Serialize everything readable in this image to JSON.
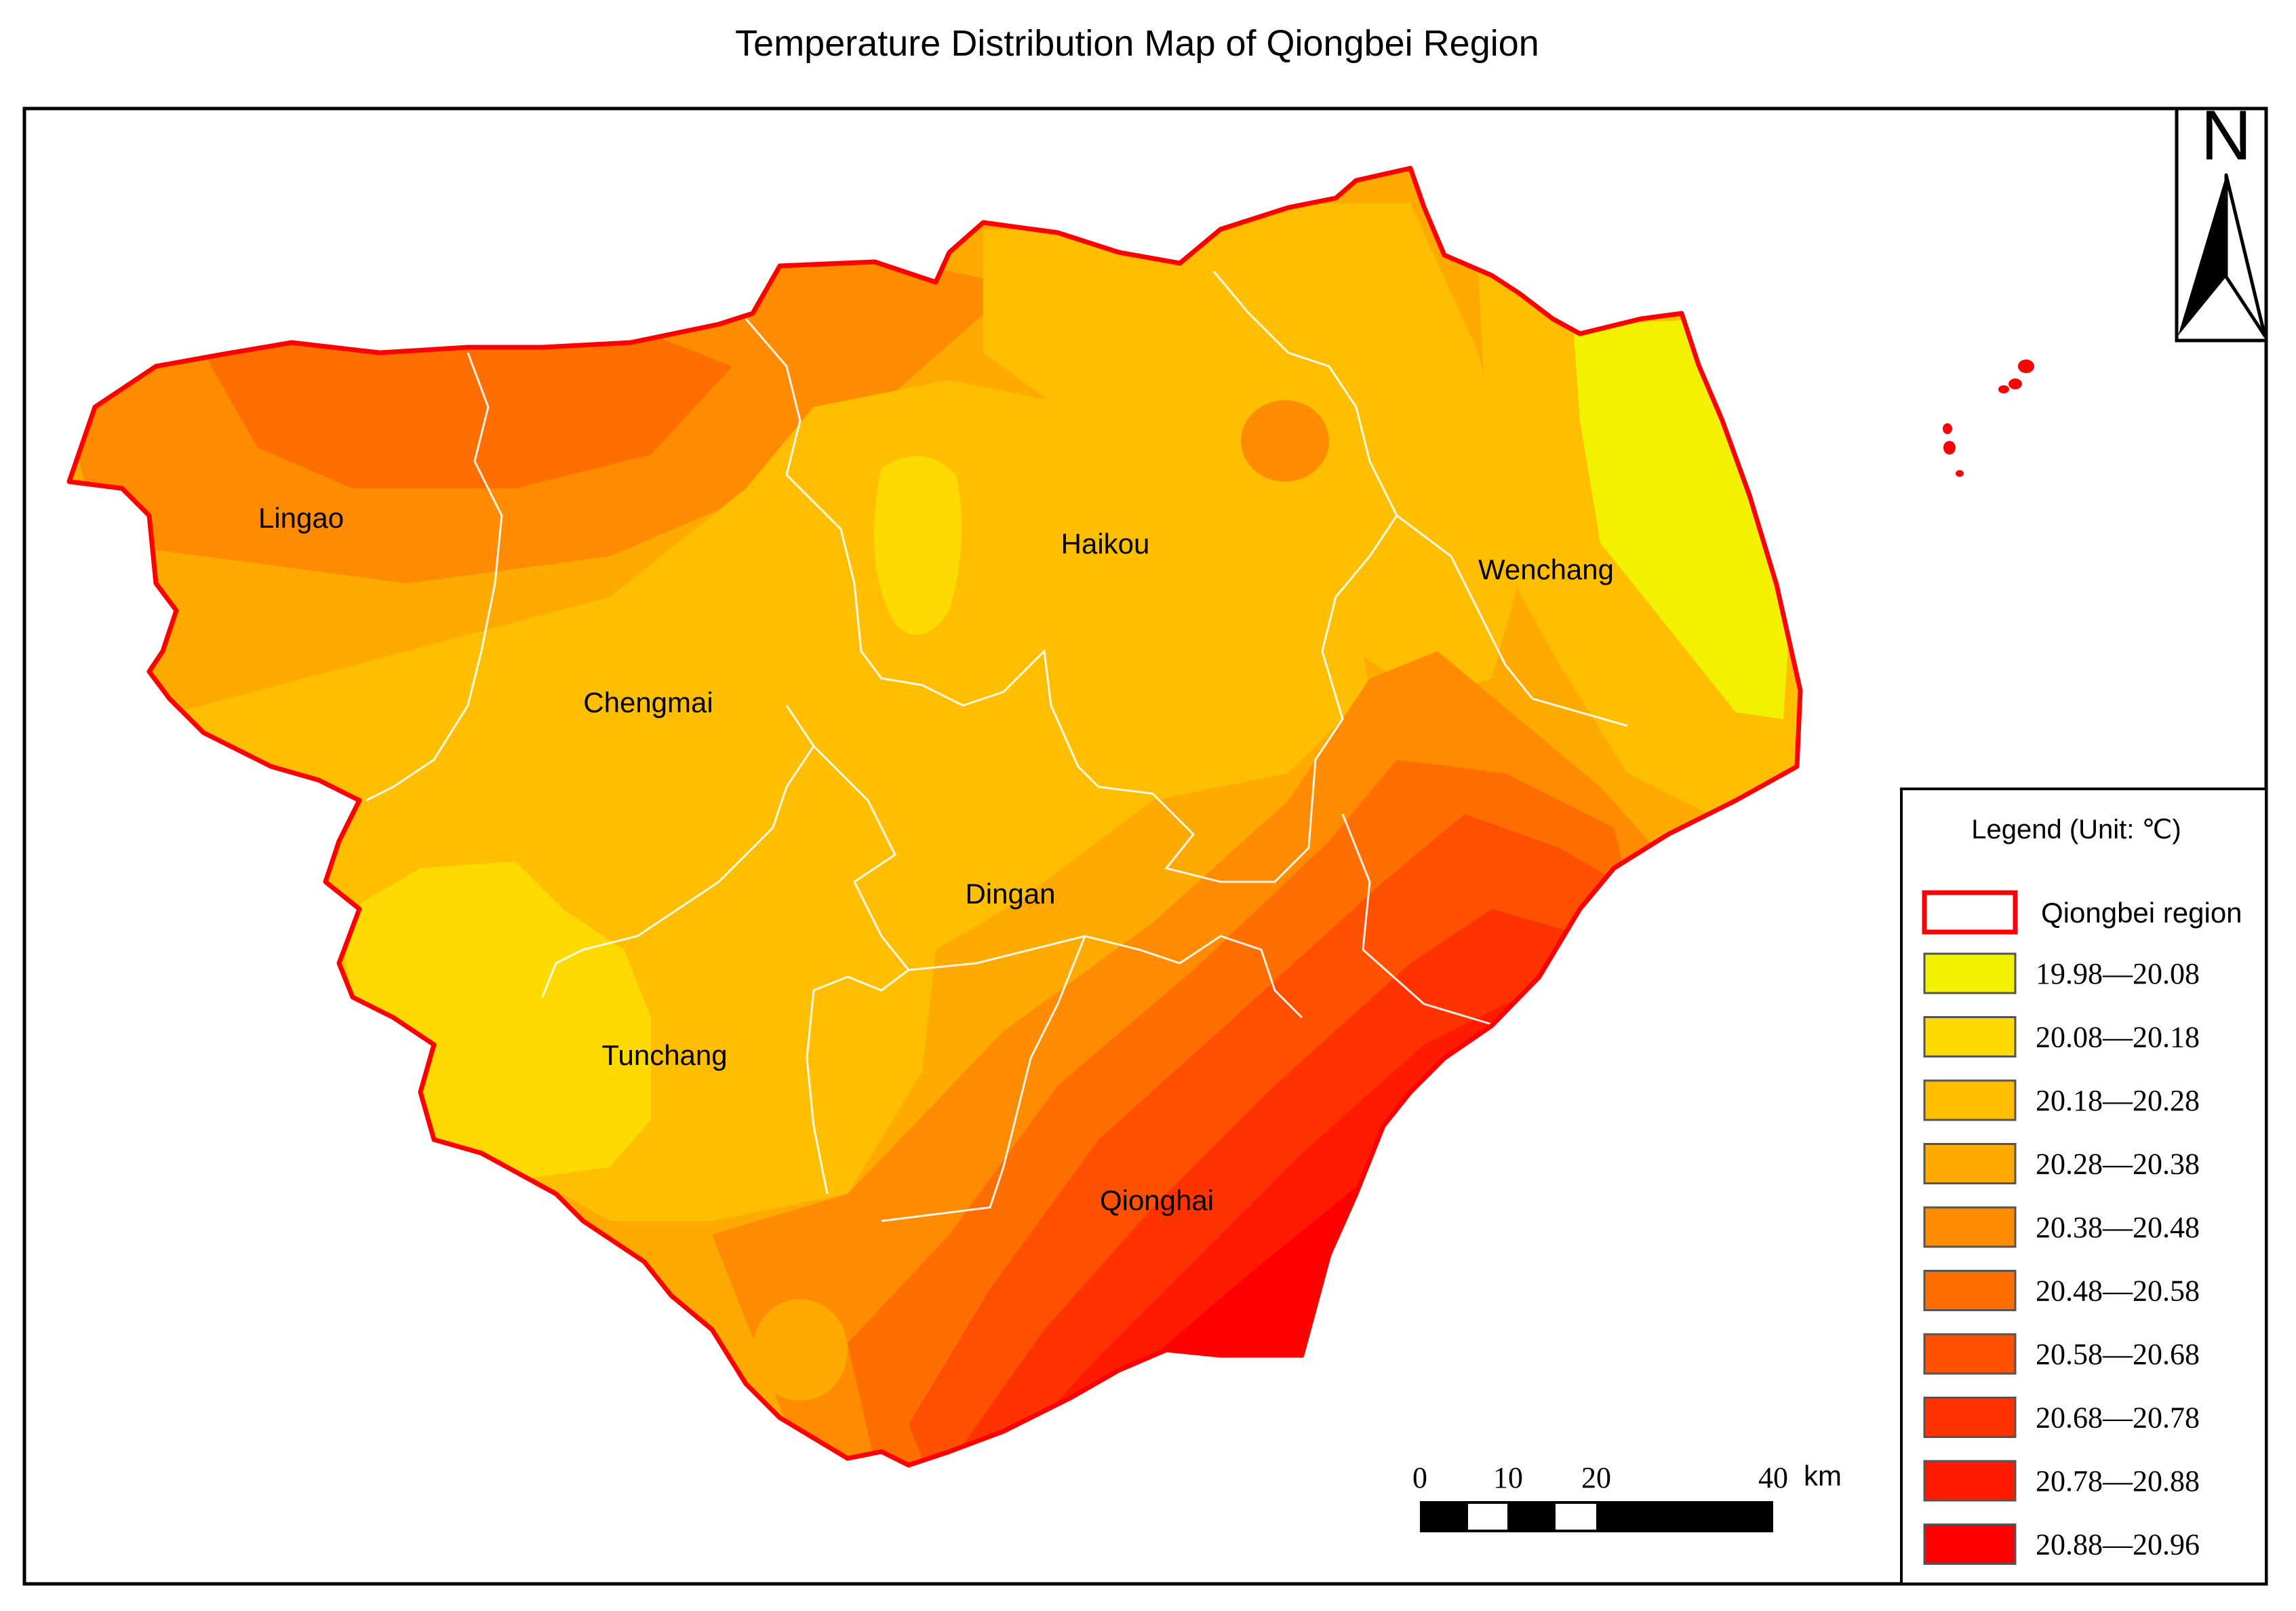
{
  "title": "Temperature Distribution Map of Qiongbei Region",
  "cities": [
    {
      "name": "Lingao"
    },
    {
      "name": "Haikou"
    },
    {
      "name": "Wenchang"
    },
    {
      "name": "Chengmai"
    },
    {
      "name": "Dingan"
    },
    {
      "name": "Tunchang"
    },
    {
      "name": "Qionghai"
    }
  ],
  "north_arrow": {
    "label": "N"
  },
  "scale_bar": {
    "ticks": [
      "0",
      "10",
      "20",
      "40"
    ],
    "unit": "km"
  },
  "legend": {
    "title": "Legend (Unit: ℃)",
    "region_label": "Qiongbei region",
    "region_color": "#ff0000",
    "classes": [
      {
        "range": "19.98—20.08",
        "color": "#f2f200"
      },
      {
        "range": "20.08—20.18",
        "color": "#ffda00"
      },
      {
        "range": "20.18—20.28",
        "color": "#ffbf00"
      },
      {
        "range": "20.28—20.38",
        "color": "#ffaa00"
      },
      {
        "range": "20.38—20.48",
        "color": "#ff8c00"
      },
      {
        "range": "20.48—20.58",
        "color": "#ff6e00"
      },
      {
        "range": "20.58—20.68",
        "color": "#ff5000"
      },
      {
        "range": "20.68—20.78",
        "color": "#ff3300"
      },
      {
        "range": "20.78—20.88",
        "color": "#ff1a00"
      },
      {
        "range": "20.88—20.96",
        "color": "#ff0000"
      }
    ]
  }
}
